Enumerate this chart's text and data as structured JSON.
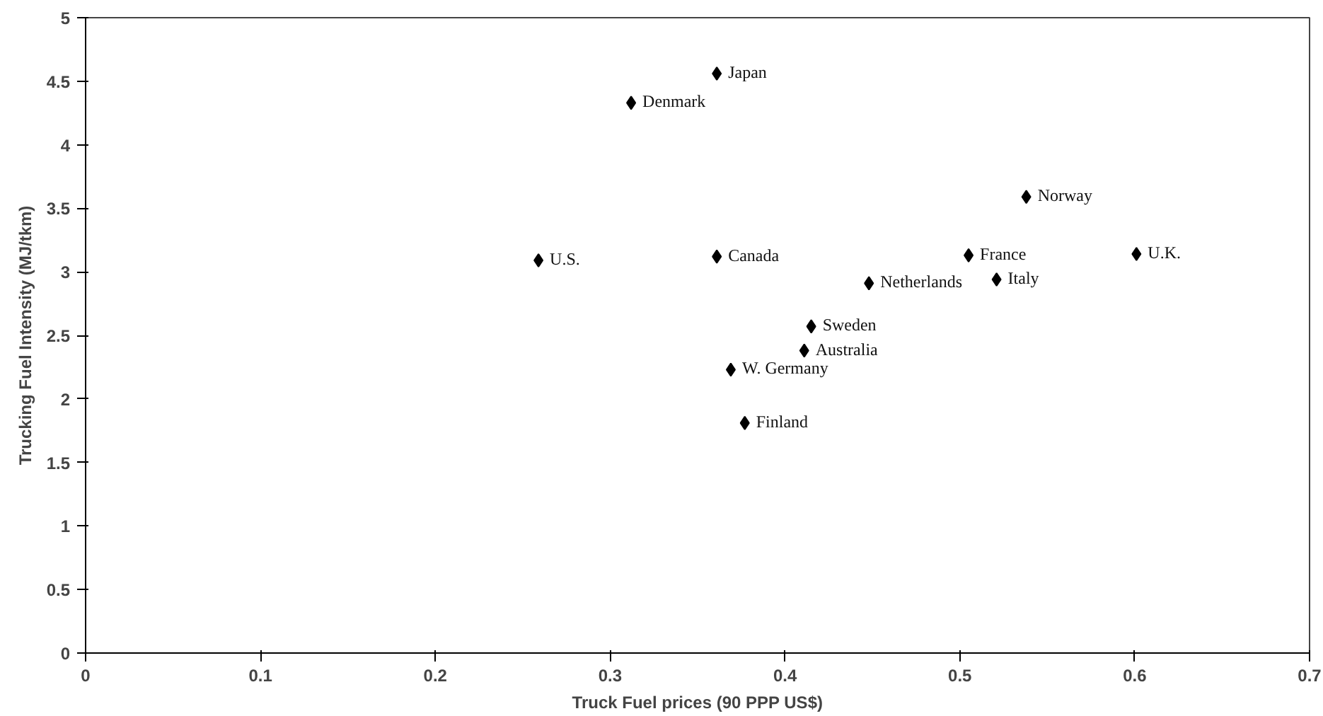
{
  "chart_data": {
    "type": "scatter",
    "xlabel": "Truck Fuel prices (90 PPP US$)",
    "ylabel": "Trucking Fuel Intensity (MJ/tkm)",
    "x": [
      0.259,
      0.361,
      0.312,
      0.361,
      0.538,
      0.505,
      0.601,
      0.448,
      0.521,
      0.415,
      0.411,
      0.369,
      0.377
    ],
    "values": [
      3.09,
      4.56,
      4.33,
      3.12,
      3.59,
      3.13,
      3.14,
      2.91,
      2.94,
      2.57,
      2.38,
      2.23,
      1.81
    ],
    "color": "#000000",
    "marker": "diamond",
    "grid": false,
    "xlim": [
      0,
      0.7
    ],
    "xticks": [
      0,
      0.1,
      0.2,
      0.3,
      0.4,
      0.5,
      0.6,
      0.7
    ],
    "ylim": [
      0,
      5
    ],
    "yticks": [
      0,
      0.5,
      1,
      1.5,
      2,
      2.5,
      3,
      3.5,
      4,
      4.5,
      5
    ],
    "annotations": [
      {
        "text": "U.S.",
        "x": 0.259,
        "y": 3.09
      },
      {
        "text": "Japan",
        "x": 0.361,
        "y": 4.56
      },
      {
        "text": "Denmark",
        "x": 0.312,
        "y": 4.33
      },
      {
        "text": "Canada",
        "x": 0.361,
        "y": 3.12
      },
      {
        "text": "Norway",
        "x": 0.538,
        "y": 3.59
      },
      {
        "text": "France",
        "x": 0.505,
        "y": 3.13
      },
      {
        "text": "U.K.",
        "x": 0.601,
        "y": 3.14
      },
      {
        "text": "Netherlands",
        "x": 0.448,
        "y": 2.91
      },
      {
        "text": "Italy",
        "x": 0.521,
        "y": 2.94
      },
      {
        "text": "Sweden",
        "x": 0.415,
        "y": 2.57
      },
      {
        "text": "Australia",
        "x": 0.411,
        "y": 2.38
      },
      {
        "text": "W. Germany",
        "x": 0.369,
        "y": 2.23
      },
      {
        "text": "Finland",
        "x": 0.377,
        "y": 1.81
      }
    ]
  }
}
